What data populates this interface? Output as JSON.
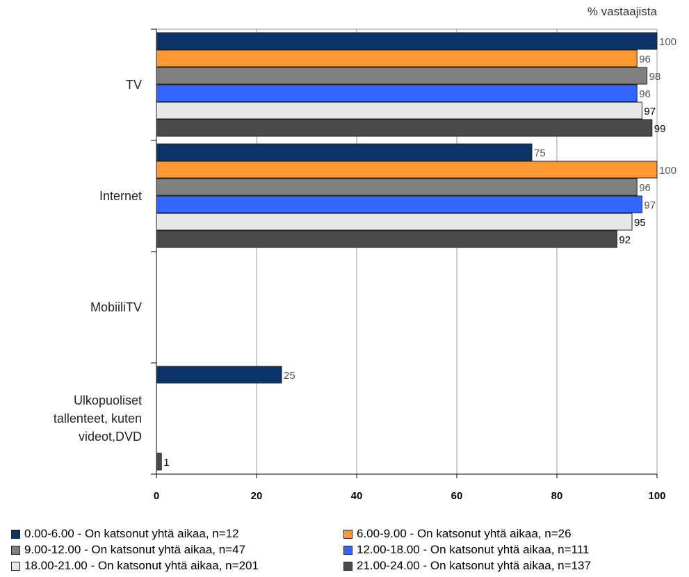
{
  "chart_data": {
    "type": "bar",
    "orientation": "horizontal",
    "unit_label": "% vastaajista",
    "categories": [
      "TV",
      "Internet",
      "MobiiliTV",
      "Ulkopuoliset tallenteet, kuten videot,DVD"
    ],
    "category_lines": [
      [
        "TV"
      ],
      [
        "Internet"
      ],
      [
        "MobiiliTV"
      ],
      [
        "Ulkopuoliset",
        "tallenteet, kuten",
        "videot,DVD"
      ]
    ],
    "xlim": [
      0,
      100
    ],
    "xticks": [
      "0",
      "20",
      "40",
      "60",
      "80",
      "100"
    ],
    "grid": true,
    "legend_position": "bottom",
    "series": [
      {
        "name": "0.00-6.00 - On katsonut yhtä aikaa, n=12",
        "color": "#0d3468",
        "label_color": "#555555",
        "values": [
          100,
          75,
          null,
          25
        ]
      },
      {
        "name": "6.00-9.00 - On katsonut yhtä aikaa, n=26",
        "color": "#ff9933",
        "label_color": "#555555",
        "values": [
          96,
          100,
          null,
          null
        ]
      },
      {
        "name": "9.00-12.00 - On katsonut yhtä aikaa, n=47",
        "color": "#808080",
        "label_color": "#555555",
        "values": [
          98,
          96,
          null,
          null
        ]
      },
      {
        "name": "12.00-18.00 - On katsonut yhtä aikaa, n=111",
        "color": "#3366ff",
        "label_color": "#555555",
        "values": [
          96,
          97,
          null,
          null
        ]
      },
      {
        "name": "18.00-21.00 - On katsonut yhtä aikaa, n=201",
        "color": "#e8e8e8",
        "label_color": "#000000",
        "values": [
          97,
          95,
          null,
          null
        ]
      },
      {
        "name": "21.00-24.00 - On katsonut yhtä aikaa, n=137",
        "color": "#4a4a4a",
        "label_color": "#000000",
        "values": [
          99,
          92,
          null,
          1
        ]
      }
    ],
    "data_labels": [
      [
        "100",
        "96",
        "98",
        "96",
        "97",
        "99"
      ],
      [
        "75",
        "100",
        "96",
        "97",
        "95",
        "92"
      ],
      [
        null,
        null,
        null,
        null,
        null,
        null
      ],
      [
        "25",
        null,
        null,
        null,
        null,
        "1"
      ]
    ]
  }
}
